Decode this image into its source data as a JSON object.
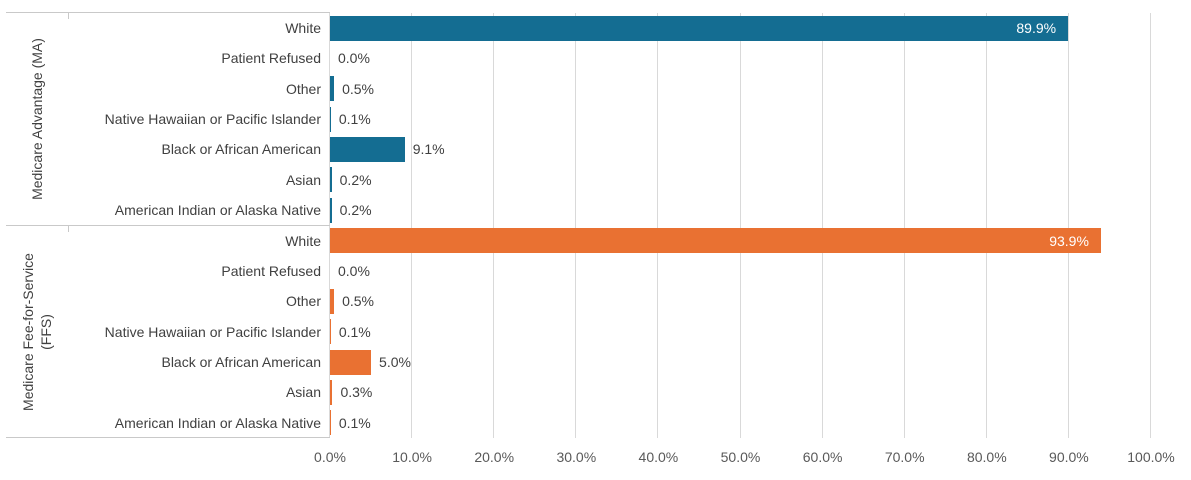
{
  "chart_data": {
    "type": "bar",
    "orientation": "horizontal",
    "title": "",
    "xlabel": "",
    "ylabel": "",
    "xlim": [
      0,
      100
    ],
    "grid": "vertical-only",
    "legend": "none",
    "x_ticks": [
      {
        "value": 0,
        "label": "0.0%"
      },
      {
        "value": 10,
        "label": "10.0%"
      },
      {
        "value": 20,
        "label": "20.0%"
      },
      {
        "value": 30,
        "label": "30.0%"
      },
      {
        "value": 40,
        "label": "40.0%"
      },
      {
        "value": 50,
        "label": "50.0%"
      },
      {
        "value": 60,
        "label": "60.0%"
      },
      {
        "value": 70,
        "label": "70.0%"
      },
      {
        "value": 80,
        "label": "80.0%"
      },
      {
        "value": 90,
        "label": "90.0%"
      },
      {
        "value": 100,
        "label": "100.0%"
      }
    ],
    "categories": [
      "White",
      "Patient Refused",
      "Other",
      "Native Hawaiian or Pacific Islander",
      "Black or African American",
      "Asian",
      "American Indian or Alaska Native"
    ],
    "series": [
      {
        "name": "Medicare Advantage (MA)",
        "name_lines": [
          "Medicare Advantage (MA)"
        ],
        "color": "#146D92",
        "values": [
          89.9,
          0.0,
          0.5,
          0.1,
          9.1,
          0.2,
          0.2
        ],
        "labels": [
          "89.9%",
          "0.0%",
          "0.5%",
          "0.1%",
          "9.1%",
          "0.2%",
          "0.2%"
        ]
      },
      {
        "name": "Medicare Fee-for-Service (FFS)",
        "name_lines": [
          "Medicare Fee-for-Service",
          "(FFS)"
        ],
        "color": "#E97132",
        "values": [
          93.9,
          0.0,
          0.5,
          0.1,
          5.0,
          0.3,
          0.1
        ],
        "labels": [
          "93.9%",
          "0.0%",
          "0.5%",
          "0.1%",
          "5.0%",
          "0.3%",
          "0.1%"
        ]
      }
    ],
    "colors": {
      "ma_bar": "#146D92",
      "ffs_bar": "#E97132",
      "gridline": "#D9D9D9",
      "separator_line": "#C9C9C9",
      "category_text": "#404040",
      "value_text": "#404040",
      "inside_value_text": "#FFFFFF",
      "tick_text": "#595959",
      "background": "#FFFFFF"
    }
  }
}
